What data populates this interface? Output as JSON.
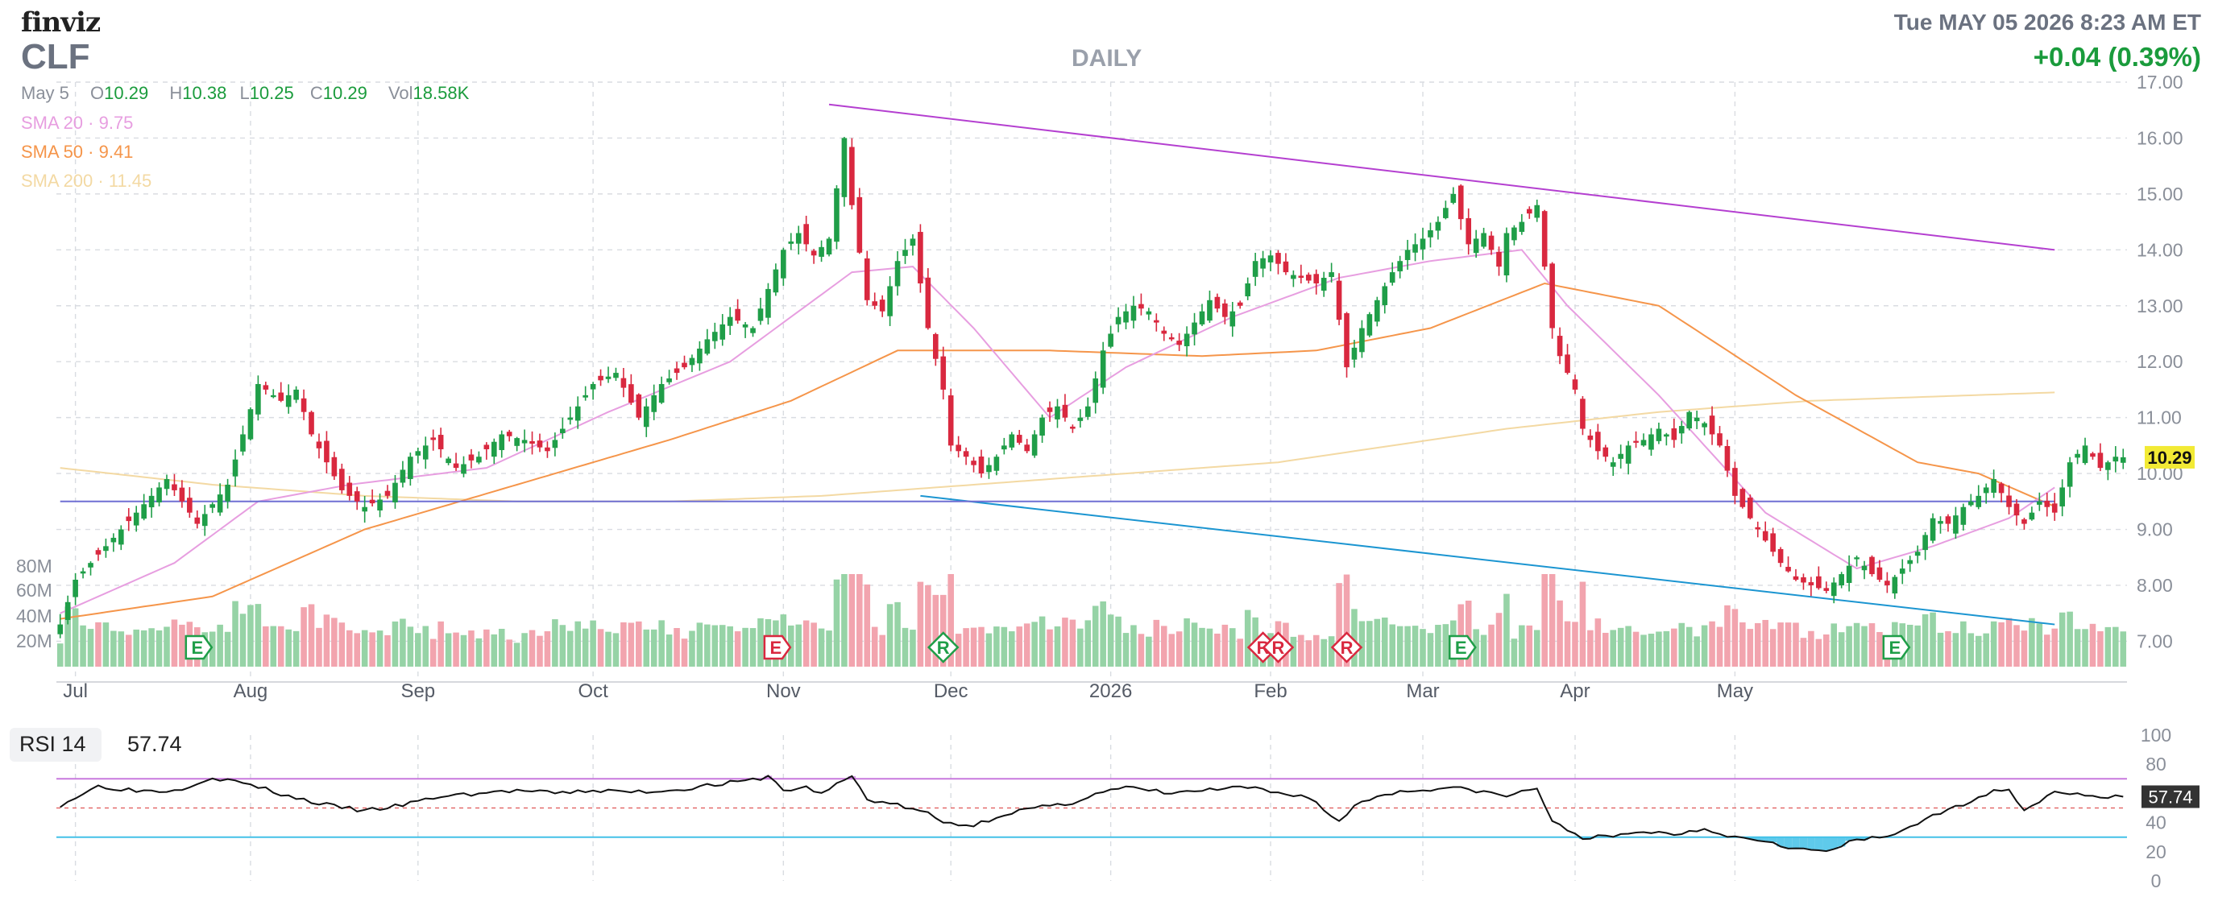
{
  "header": {
    "brand": "finviz",
    "ticker": "CLF",
    "timeframe": "DAILY",
    "datetime": "Tue MAY 05 2026 8:23 AM ET",
    "change": "+0.04 (0.39%)"
  },
  "ohlc": {
    "date": "May 5",
    "open_label": "O",
    "open": "10.29",
    "high_label": "H",
    "high": "10.38",
    "low_label": "L",
    "low": "10.25",
    "close_label": "C",
    "close": "10.29",
    "vol_label": "Vol",
    "vol": "18.58K"
  },
  "indicators": {
    "sma20": "SMA 20 · 9.75",
    "sma50": "SMA 50 · 9.41",
    "sma200": "SMA 200 · 11.45"
  },
  "rsi": {
    "label": "RSI 14",
    "value": "57.74"
  },
  "colors": {
    "up": "#1f9e48",
    "down": "#d9283f",
    "vol_up": "#96d3a6",
    "vol_down": "#f2a4ae",
    "sma20": "#e79ee0",
    "sma50": "#f5954a",
    "sma200": "#f3d9a3",
    "resistance": "#b43fd0",
    "support": "#1b95d1",
    "level": "#6f6fd3",
    "rsi_line": "#111111",
    "rsi_upper": "#c879dd",
    "rsi_lower": "#43c1e8",
    "rsi_mid": "#e05555"
  },
  "chart_data": [
    {
      "type": "candlestick",
      "title": "CLF",
      "ylim": [
        6.3,
        17.0
      ],
      "y_ticks": [
        "17.00",
        "16.00",
        "15.00",
        "14.00",
        "13.00",
        "12.00",
        "11.00",
        "10.00",
        "9.00",
        "8.00",
        "7.00"
      ],
      "volume_ticks": [
        "80M",
        "60M",
        "40M",
        "20M"
      ],
      "x_ticks": [
        "Jul",
        "Aug",
        "Sep",
        "Oct",
        "Nov",
        "Dec",
        "2026",
        "Feb",
        "Mar",
        "Apr",
        "May"
      ],
      "last_price_label": "10.29",
      "anchors": [
        [
          0,
          7.3
        ],
        [
          2,
          8.1
        ],
        [
          6,
          8.7
        ],
        [
          10,
          9.3
        ],
        [
          14,
          9.9
        ],
        [
          18,
          9.1
        ],
        [
          22,
          9.8
        ],
        [
          26,
          11.6
        ],
        [
          29,
          11.3
        ],
        [
          31,
          11.5
        ],
        [
          33,
          10.7
        ],
        [
          35,
          10.2
        ],
        [
          37,
          9.7
        ],
        [
          40,
          9.4
        ],
        [
          43,
          9.6
        ],
        [
          46,
          10.3
        ],
        [
          49,
          10.6
        ],
        [
          52,
          10.1
        ],
        [
          55,
          10.3
        ],
        [
          58,
          10.7
        ],
        [
          61,
          10.6
        ],
        [
          64,
          10.4
        ],
        [
          67,
          11.0
        ],
        [
          70,
          11.6
        ],
        [
          73,
          11.8
        ],
        [
          76,
          11.0
        ],
        [
          79,
          11.6
        ],
        [
          82,
          11.9
        ],
        [
          85,
          12.4
        ],
        [
          88,
          12.8
        ],
        [
          91,
          12.6
        ],
        [
          93,
          13.3
        ],
        [
          95,
          14.0
        ],
        [
          97,
          14.3
        ],
        [
          99,
          13.9
        ],
        [
          101,
          14.2
        ],
        [
          103,
          16.0
        ],
        [
          104,
          14.8
        ],
        [
          106,
          13.1
        ],
        [
          108,
          12.9
        ],
        [
          110,
          13.8
        ],
        [
          112,
          14.2
        ],
        [
          114,
          12.6
        ],
        [
          116,
          11.5
        ],
        [
          117,
          10.5
        ],
        [
          119,
          10.3
        ],
        [
          121,
          10.0
        ],
        [
          123,
          10.3
        ],
        [
          125,
          10.7
        ],
        [
          127,
          10.4
        ],
        [
          129,
          11.0
        ],
        [
          131,
          11.2
        ],
        [
          133,
          10.8
        ],
        [
          135,
          11.2
        ],
        [
          137,
          12.2
        ],
        [
          139,
          12.8
        ],
        [
          141,
          13.0
        ],
        [
          143,
          12.9
        ],
        [
          145,
          12.5
        ],
        [
          147,
          12.3
        ],
        [
          149,
          12.7
        ],
        [
          151,
          13.1
        ],
        [
          153,
          12.8
        ],
        [
          155,
          13.0
        ],
        [
          157,
          13.8
        ],
        [
          159,
          13.9
        ],
        [
          161,
          13.6
        ],
        [
          163,
          13.5
        ],
        [
          165,
          13.4
        ],
        [
          167,
          13.6
        ],
        [
          169,
          11.9
        ],
        [
          171,
          12.6
        ],
        [
          173,
          13.1
        ],
        [
          175,
          13.6
        ],
        [
          177,
          14.0
        ],
        [
          179,
          14.2
        ],
        [
          181,
          14.5
        ],
        [
          183,
          15.0
        ],
        [
          185,
          14.1
        ],
        [
          187,
          14.3
        ],
        [
          189,
          13.7
        ],
        [
          190,
          14.3
        ],
        [
          192,
          14.5
        ],
        [
          194,
          14.8
        ],
        [
          196,
          12.6
        ],
        [
          197,
          12.1
        ],
        [
          199,
          11.5
        ],
        [
          200,
          10.8
        ],
        [
          202,
          10.4
        ],
        [
          204,
          10.2
        ],
        [
          206,
          10.5
        ],
        [
          208,
          10.6
        ],
        [
          210,
          10.8
        ],
        [
          212,
          10.6
        ],
        [
          214,
          11.1
        ],
        [
          216,
          10.9
        ],
        [
          218,
          10.5
        ],
        [
          220,
          9.6
        ],
        [
          222,
          9.2
        ],
        [
          224,
          8.8
        ],
        [
          226,
          8.4
        ],
        [
          228,
          8.1
        ],
        [
          230,
          8.0
        ],
        [
          232,
          7.9
        ],
        [
          234,
          8.2
        ],
        [
          236,
          8.5
        ],
        [
          238,
          8.2
        ],
        [
          240,
          8.0
        ],
        [
          242,
          8.3
        ],
        [
          244,
          8.6
        ],
        [
          246,
          9.2
        ],
        [
          248,
          9.1
        ],
        [
          250,
          9.4
        ],
        [
          252,
          9.6
        ],
        [
          254,
          9.9
        ],
        [
          256,
          9.4
        ],
        [
          258,
          9.1
        ],
        [
          260,
          9.5
        ],
        [
          262,
          9.3
        ],
        [
          264,
          10.2
        ],
        [
          266,
          10.5
        ],
        [
          268,
          10.1
        ],
        [
          270,
          10.3
        ],
        [
          271,
          10.29
        ]
      ],
      "annotations": [
        {
          "text": "E",
          "kind": "earnings"
        },
        {
          "text": "E",
          "kind": "earnings"
        },
        {
          "text": "R",
          "kind": "rating"
        },
        {
          "text": "R",
          "kind": "rating"
        },
        {
          "text": "R",
          "kind": "rating"
        },
        {
          "text": "R",
          "kind": "rating"
        },
        {
          "text": "E",
          "kind": "earnings"
        },
        {
          "text": "E",
          "kind": "earnings"
        }
      ],
      "trendlines": [
        {
          "name": "resistance",
          "from": [
            101,
            16.6
          ],
          "to": [
            262,
            14.0
          ]
        },
        {
          "name": "support",
          "from": [
            113,
            9.6
          ],
          "to": [
            262,
            7.3
          ]
        },
        {
          "name": "level",
          "from": [
            0,
            9.5
          ],
          "to": [
            262,
            9.5
          ]
        }
      ],
      "sma20": [
        [
          0,
          7.5
        ],
        [
          15,
          8.4
        ],
        [
          26,
          9.5
        ],
        [
          38,
          9.8
        ],
        [
          56,
          10.1
        ],
        [
          72,
          11.1
        ],
        [
          88,
          12.0
        ],
        [
          104,
          13.6
        ],
        [
          112,
          13.7
        ],
        [
          120,
          12.6
        ],
        [
          130,
          11.0
        ],
        [
          140,
          11.9
        ],
        [
          154,
          12.8
        ],
        [
          168,
          13.5
        ],
        [
          180,
          13.8
        ],
        [
          192,
          14.0
        ],
        [
          198,
          13.0
        ],
        [
          210,
          11.4
        ],
        [
          224,
          9.3
        ],
        [
          236,
          8.3
        ],
        [
          246,
          8.7
        ],
        [
          256,
          9.2
        ],
        [
          262,
          9.75
        ]
      ],
      "sma50": [
        [
          0,
          7.4
        ],
        [
          20,
          7.8
        ],
        [
          40,
          9.0
        ],
        [
          60,
          9.8
        ],
        [
          80,
          10.6
        ],
        [
          96,
          11.3
        ],
        [
          110,
          12.2
        ],
        [
          130,
          12.2
        ],
        [
          150,
          12.1
        ],
        [
          165,
          12.2
        ],
        [
          180,
          12.6
        ],
        [
          195,
          13.4
        ],
        [
          210,
          13.0
        ],
        [
          228,
          11.4
        ],
        [
          244,
          10.2
        ],
        [
          252,
          10.0
        ],
        [
          262,
          9.41
        ]
      ],
      "sma200": [
        [
          0,
          10.1
        ],
        [
          20,
          9.8
        ],
        [
          40,
          9.6
        ],
        [
          60,
          9.5
        ],
        [
          80,
          9.5
        ],
        [
          100,
          9.6
        ],
        [
          130,
          9.9
        ],
        [
          160,
          10.2
        ],
        [
          190,
          10.8
        ],
        [
          210,
          11.1
        ],
        [
          230,
          11.3
        ],
        [
          262,
          11.45
        ]
      ]
    },
    {
      "type": "line",
      "title": "RSI 14",
      "ylim": [
        0,
        100
      ],
      "y_ticks": [
        "100",
        "80",
        "60",
        "40",
        "20",
        "0"
      ],
      "levels": [
        70,
        50,
        30
      ],
      "last_value_label": "57.74",
      "anchors": [
        [
          0,
          52
        ],
        [
          5,
          65
        ],
        [
          10,
          62
        ],
        [
          15,
          62
        ],
        [
          20,
          71
        ],
        [
          25,
          66
        ],
        [
          30,
          58
        ],
        [
          35,
          52
        ],
        [
          40,
          48
        ],
        [
          45,
          52
        ],
        [
          50,
          58
        ],
        [
          55,
          60
        ],
        [
          60,
          62
        ],
        [
          65,
          60
        ],
        [
          70,
          62
        ],
        [
          75,
          61
        ],
        [
          80,
          62
        ],
        [
          86,
          66
        ],
        [
          91,
          69
        ],
        [
          93,
          72
        ],
        [
          95,
          62
        ],
        [
          98,
          64
        ],
        [
          100,
          60
        ],
        [
          104,
          72
        ],
        [
          106,
          56
        ],
        [
          110,
          52
        ],
        [
          114,
          46
        ],
        [
          116,
          40
        ],
        [
          120,
          38
        ],
        [
          124,
          46
        ],
        [
          128,
          50
        ],
        [
          132,
          52
        ],
        [
          136,
          60
        ],
        [
          140,
          64
        ],
        [
          146,
          60
        ],
        [
          150,
          62
        ],
        [
          156,
          64
        ],
        [
          160,
          60
        ],
        [
          164,
          58
        ],
        [
          168,
          40
        ],
        [
          170,
          52
        ],
        [
          174,
          60
        ],
        [
          178,
          62
        ],
        [
          182,
          64
        ],
        [
          186,
          62
        ],
        [
          190,
          58
        ],
        [
          194,
          64
        ],
        [
          196,
          40
        ],
        [
          200,
          30
        ],
        [
          204,
          30
        ],
        [
          208,
          34
        ],
        [
          212,
          32
        ],
        [
          216,
          36
        ],
        [
          220,
          30
        ],
        [
          224,
          28
        ],
        [
          228,
          22
        ],
        [
          232,
          20
        ],
        [
          236,
          28
        ],
        [
          240,
          30
        ],
        [
          244,
          40
        ],
        [
          248,
          48
        ],
        [
          252,
          58
        ],
        [
          256,
          64
        ],
        [
          258,
          48
        ],
        [
          262,
          62
        ],
        [
          266,
          58
        ],
        [
          270,
          57.74
        ]
      ]
    }
  ]
}
